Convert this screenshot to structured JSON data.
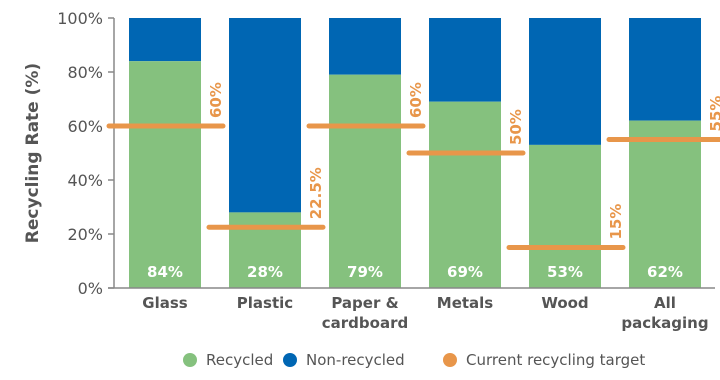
{
  "chart_data": {
    "type": "bar",
    "stacked": true,
    "categories": [
      [
        "Glass"
      ],
      [
        "Plastic"
      ],
      [
        "Paper &",
        "cardboard"
      ],
      [
        "Metals"
      ],
      [
        "Wood"
      ],
      [
        "All",
        "packaging"
      ]
    ],
    "series": [
      {
        "name": "Recycled",
        "values": [
          84,
          28,
          79,
          69,
          53,
          62
        ]
      },
      {
        "name": "Non-recycled",
        "values": [
          16,
          72,
          21,
          31,
          47,
          38
        ]
      }
    ],
    "bar_labels": [
      "84%",
      "28%",
      "79%",
      "69%",
      "53%",
      "62%"
    ],
    "targets": {
      "name": "Current recycling target",
      "values": [
        60,
        22.5,
        60,
        50,
        15,
        55
      ],
      "labels": [
        "60%",
        "22.5%",
        "60%",
        "50%",
        "15%",
        "55%"
      ]
    },
    "ylabel": "Recycling Rate (%)",
    "ylim": [
      0,
      100
    ],
    "yticks": [
      0,
      20,
      40,
      60,
      80,
      100
    ],
    "ytick_labels": [
      "0%",
      "20%",
      "40%",
      "60%",
      "80%",
      "100%"
    ],
    "legend_position": "bottom",
    "grid": false
  },
  "colors": {
    "recycled": "#85c17e",
    "non_recycled": "#0066b3",
    "target": "#e8964a",
    "axis": "#888888",
    "text": "#555555"
  },
  "legend": [
    {
      "label": "Recycled",
      "color_key": "recycled"
    },
    {
      "label": "Non-recycled",
      "color_key": "non_recycled"
    },
    {
      "label": "Current recycling target",
      "color_key": "target"
    }
  ]
}
